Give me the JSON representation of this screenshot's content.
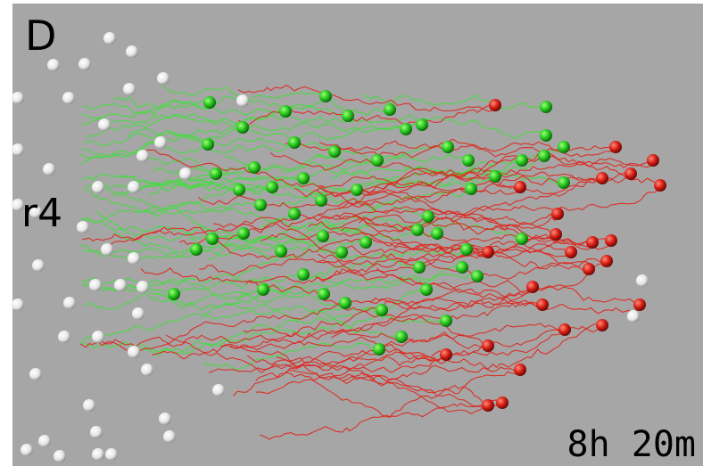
{
  "panel_label": "D",
  "region_label": "r4",
  "timestamp": "8h 20m"
}
